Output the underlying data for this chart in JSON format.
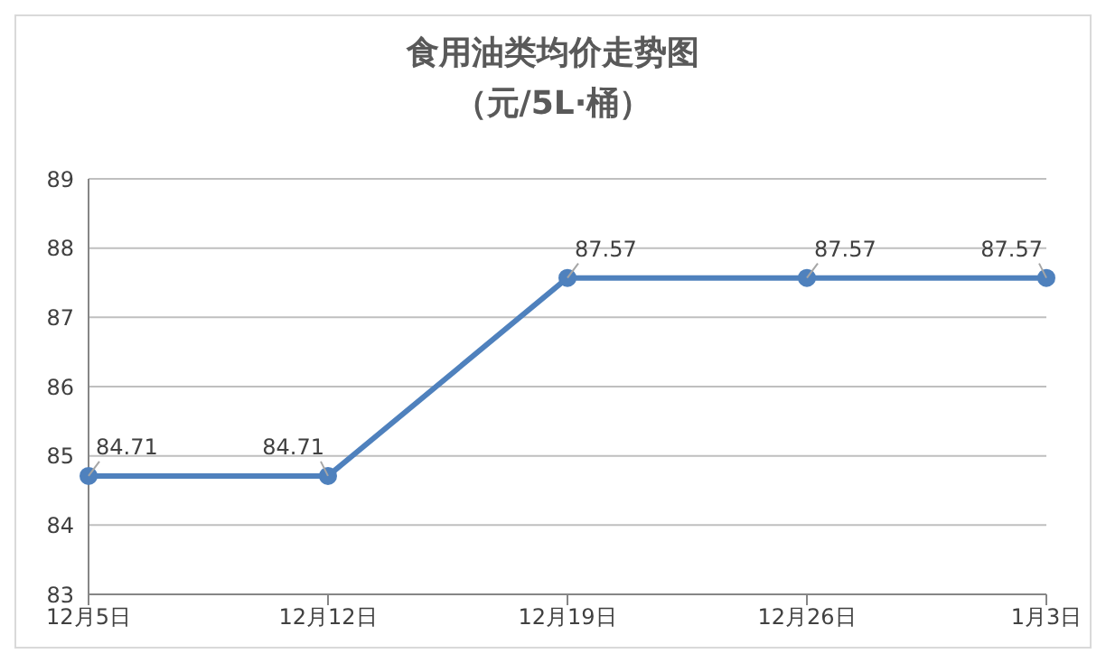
{
  "chart_data": {
    "type": "line",
    "title": "食用油类均价走势图",
    "subtitle": "（元/5L·桶）",
    "categories": [
      "12月5日",
      "12月12日",
      "12月19日",
      "12月26日",
      "1月3日"
    ],
    "series": [
      {
        "color": "#4f81bd",
        "values": [
          84.71,
          84.71,
          87.57,
          87.57,
          87.57
        ]
      }
    ],
    "ylim": [
      83,
      89
    ],
    "yticks": [
      83,
      84,
      85,
      86,
      87,
      88,
      89
    ],
    "grid": "y",
    "marker": "circle",
    "line_style": "solid",
    "data_labels": true,
    "legend": false
  }
}
